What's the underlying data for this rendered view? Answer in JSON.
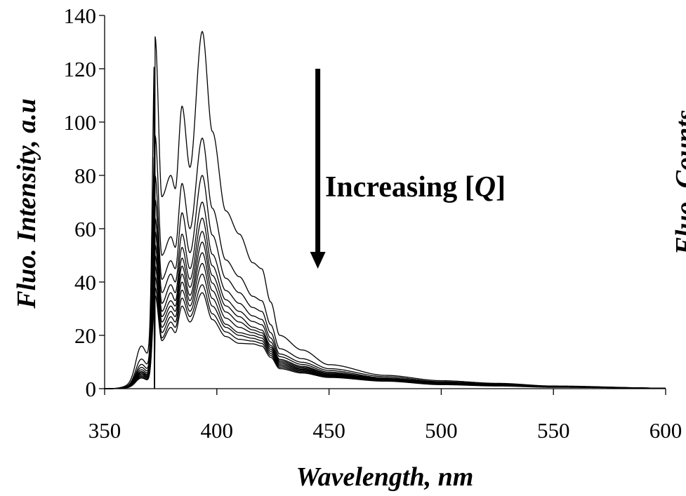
{
  "chart_data": {
    "type": "line",
    "xlabel": "Wavelength, nm",
    "ylabel": "Fluo. Intensity, a.u",
    "right_ylabel_partial": "Fluo. Counts",
    "xlim": [
      350,
      600
    ],
    "ylim": [
      0,
      140
    ],
    "xticks": [
      350,
      400,
      450,
      500,
      550,
      600
    ],
    "yticks": [
      0,
      20,
      40,
      60,
      80,
      100,
      120,
      140
    ],
    "grid": false,
    "line_color": "#000000",
    "annotation": {
      "prefix": "Increasing [",
      "italic": "Q",
      "suffix": "]",
      "arrow": "down",
      "arrow_x": 445,
      "arrow_y_from": 120,
      "arrow_y_to": 45
    },
    "series": [
      {
        "values": {
          "p372": 132,
          "v376": 72,
          "p380": 80,
          "v382": 75,
          "p385": 106,
          "v388": 83,
          "p394": 134,
          "s410": 58,
          "s420": 45,
          "v428": 20,
          "v450": 9,
          "v475": 5,
          "v500": 3,
          "v550": 1,
          "v600": 0.2
        }
      },
      {
        "values": {
          "p372": 95,
          "v376": 50,
          "p380": 57,
          "v382": 53,
          "p385": 77,
          "v388": 60,
          "p394": 94,
          "s410": 42,
          "s420": 33,
          "v428": 15,
          "v450": 7.5,
          "v475": 4.5,
          "v500": 2.6,
          "v550": 0.9,
          "v600": 0.2
        }
      },
      {
        "values": {
          "p372": 80,
          "v376": 41,
          "p380": 48,
          "v382": 45,
          "p385": 66,
          "v388": 51,
          "p394": 80,
          "s410": 36,
          "s420": 29,
          "v428": 13,
          "v450": 6.8,
          "v475": 4,
          "v500": 2.4,
          "v550": 0.8,
          "v600": 0.2
        }
      },
      {
        "values": {
          "p372": 71,
          "v376": 36,
          "p380": 43,
          "v382": 40,
          "p385": 58,
          "v388": 45,
          "p394": 70,
          "s410": 32,
          "s420": 26,
          "v428": 12,
          "v450": 6.2,
          "v475": 3.8,
          "v500": 2.2,
          "v550": 0.8,
          "v600": 0.2
        }
      },
      {
        "values": {
          "p372": 64,
          "v376": 32,
          "p380": 39,
          "v382": 36,
          "p385": 53,
          "v388": 41,
          "p394": 64,
          "s410": 29,
          "s420": 24,
          "v428": 11,
          "v450": 5.8,
          "v475": 3.6,
          "v500": 2.1,
          "v550": 0.7,
          "v600": 0.2
        }
      },
      {
        "values": {
          "p372": 59,
          "v376": 29,
          "p380": 36,
          "v382": 33,
          "p385": 49,
          "v388": 38,
          "p394": 59,
          "s410": 27,
          "s420": 22,
          "v428": 10.5,
          "v450": 5.5,
          "v475": 3.4,
          "v500": 2,
          "v550": 0.7,
          "v600": 0.2
        }
      },
      {
        "values": {
          "p372": 54,
          "v376": 27,
          "p380": 33,
          "v382": 31,
          "p385": 46,
          "v388": 35,
          "p394": 55,
          "s410": 25,
          "s420": 21,
          "v428": 10,
          "v450": 5.2,
          "v475": 3.3,
          "v500": 1.9,
          "v550": 0.7,
          "v600": 0.2
        }
      },
      {
        "values": {
          "p372": 50,
          "v376": 25,
          "p380": 31,
          "v382": 29,
          "p385": 43,
          "v388": 33,
          "p394": 51,
          "s410": 23,
          "s420": 20,
          "v428": 9.5,
          "v450": 5,
          "v475": 3.2,
          "v500": 1.8,
          "v550": 0.6,
          "v600": 0.2
        }
      },
      {
        "values": {
          "p372": 46,
          "v376": 23,
          "p380": 29,
          "v382": 27,
          "p385": 40,
          "v388": 31,
          "p394": 47,
          "s410": 21,
          "s420": 19,
          "v428": 9,
          "v450": 4.8,
          "v475": 3.1,
          "v500": 1.7,
          "v550": 0.6,
          "v600": 0.2
        }
      },
      {
        "values": {
          "p372": 42,
          "v376": 21,
          "p380": 27,
          "v382": 25,
          "p385": 37,
          "v388": 29,
          "p394": 43,
          "s410": 20,
          "s420": 18,
          "v428": 8.5,
          "v450": 4.6,
          "v475": 3,
          "v500": 1.6,
          "v550": 0.6,
          "v600": 0.2
        }
      },
      {
        "values": {
          "p372": 38,
          "v376": 19,
          "p380": 25,
          "v382": 23,
          "p385": 34,
          "v388": 27,
          "p394": 39,
          "s410": 18.5,
          "s420": 17,
          "v428": 8,
          "v450": 4.4,
          "v475": 2.9,
          "v500": 1.6,
          "v550": 0.6,
          "v600": 0.2
        }
      },
      {
        "values": {
          "p372": 35,
          "v376": 18,
          "p380": 23,
          "v382": 21,
          "p385": 31,
          "v388": 25,
          "p394": 36,
          "s410": 17,
          "s420": 16,
          "v428": 7.5,
          "v450": 4.2,
          "v475": 2.8,
          "v500": 1.5,
          "v550": 0.5,
          "v600": 0.2
        }
      }
    ]
  }
}
